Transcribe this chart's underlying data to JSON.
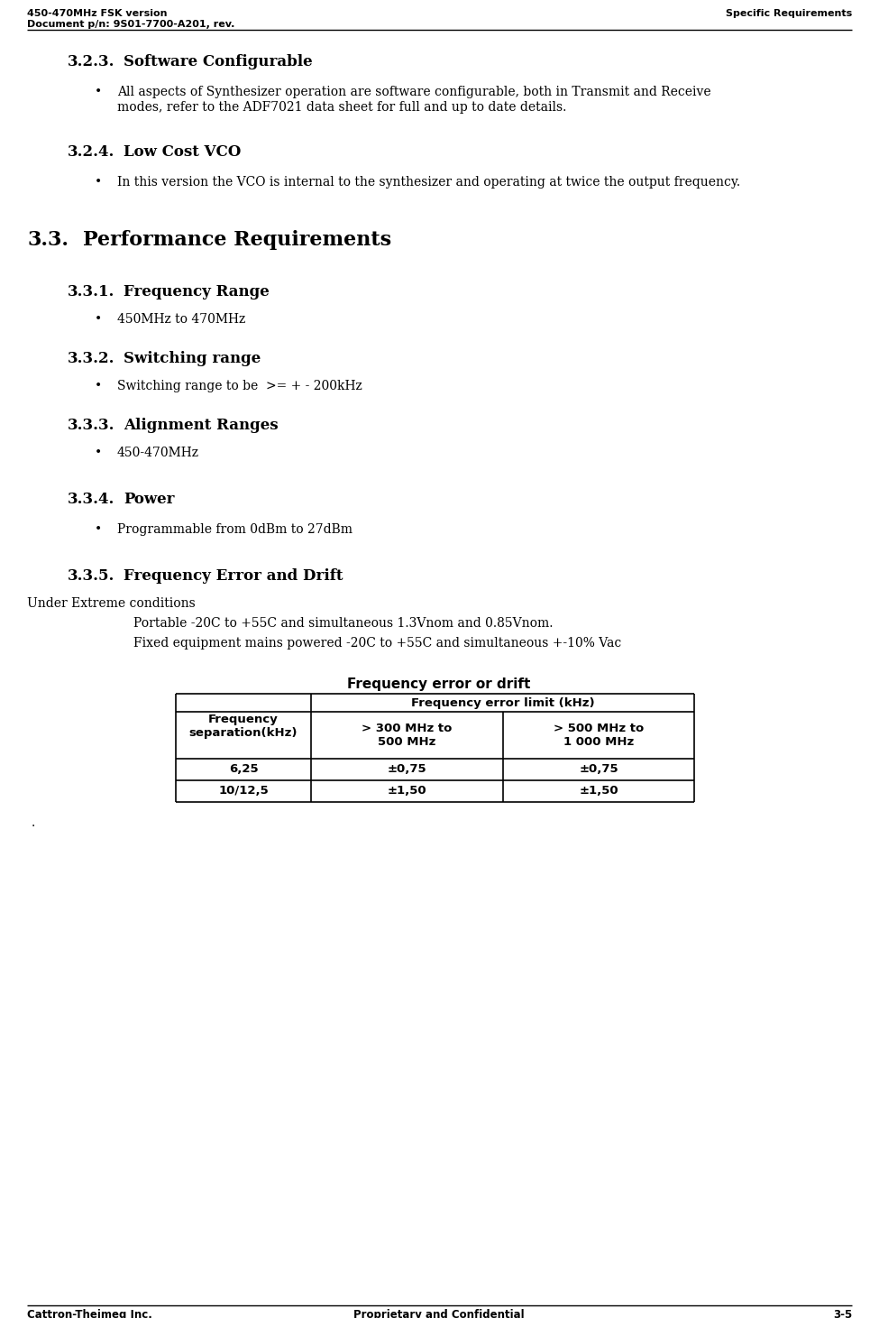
{
  "header_left_line1": "450-470MHz FSK version",
  "header_left_line2": "Document p/n: 9S01-7700-A201, rev.",
  "header_right": "Specific Requirements",
  "footer_left": "Cattron-Theimeg Inc.",
  "footer_center": "Proprietary and Confidential",
  "footer_right": "3-5",
  "section_323_num": "3.2.3.",
  "section_323_name": "Software Configurable",
  "section_323_bullet": "All aspects of Synthesizer operation are software configurable, both in Transmit and Receive\nmodes, refer to the ADF7021 data sheet for full and up to date details.",
  "section_324_num": "3.2.4.",
  "section_324_name": "Low Cost VCO",
  "section_324_bullet": "In this version the VCO is internal to the synthesizer and operating at twice the output frequency.",
  "section_33_num": "3.3.",
  "section_33_name": "Performance Requirements",
  "section_331_num": "3.3.1.",
  "section_331_name": "Frequency Range",
  "section_331_bullet": "450MHz to 470MHz",
  "section_332_num": "3.3.2.",
  "section_332_name": "Switching range",
  "section_332_bullet": "Switching range to be  >= + - 200kHz",
  "section_333_num": "3.3.3.",
  "section_333_name": "Alignment Ranges",
  "section_333_bullet": "450-470MHz",
  "section_334_num": "3.3.4.",
  "section_334_name": "Power",
  "section_334_bullet": "Programmable from 0dBm to 27dBm",
  "section_335_num": "3.3.5.",
  "section_335_name": "Frequency Error and Drift",
  "section_335_para1": "Under Extreme conditions",
  "section_335_para2": "Portable -20C to +55C and simultaneous 1.3Vnom and 0.85Vnom.",
  "section_335_para3": "Fixed equipment mains powered -20C to +55C and simultaneous +-10% Vac",
  "table_title": "Frequency error or drift",
  "table_col1_header": "Frequency\nseparation(kHz)",
  "table_col2_header": "Frequency error limit (kHz)",
  "table_col2a_header": "> 300 MHz to\n500 MHz",
  "table_col2b_header": "> 500 MHz to\n1 000 MHz",
  "table_row1": [
    "6,25",
    "±0,75",
    "±0,75"
  ],
  "table_row2": [
    "10/12,5",
    "±1,50",
    "±1,50"
  ],
  "bg_color": "#ffffff",
  "header_fontsize": 8.0,
  "sub_section_fontsize": 12.0,
  "main_section_fontsize": 16.0,
  "body_fontsize": 10.0,
  "footer_fontsize": 8.5,
  "table_title_fontsize": 11.0,
  "table_fontsize": 9.5
}
